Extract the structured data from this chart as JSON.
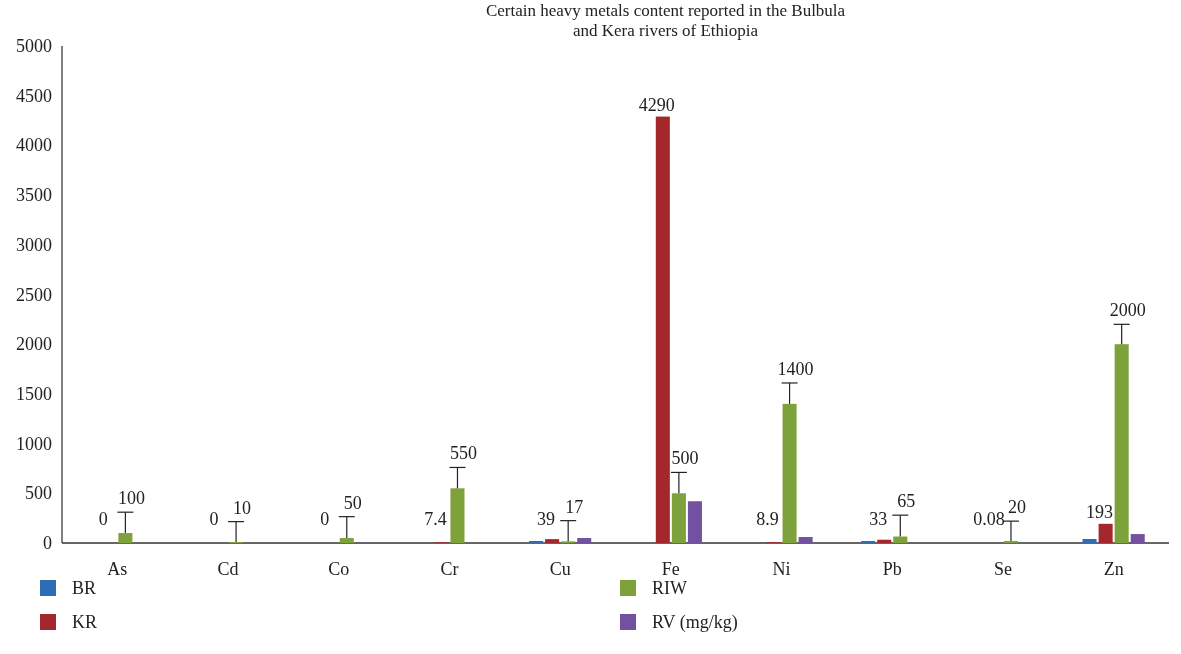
{
  "chart_data": {
    "type": "bar",
    "title": "Certain heavy metals content reported in the Bulbula\nand Kera rivers of Ethiopia",
    "categories": [
      "As",
      "Cd",
      "Co",
      "Cr",
      "Cu",
      "Fe",
      "Ni",
      "Pb",
      "Se",
      "Zn"
    ],
    "ylim": [
      0,
      5000
    ],
    "yticks": [
      0,
      500,
      1000,
      1500,
      2000,
      2500,
      3000,
      3500,
      4000,
      4500,
      5000
    ],
    "grid": false,
    "legend": "bottom",
    "series": [
      {
        "name": "BR",
        "color": "#2e6db4",
        "values": [
          0,
          0,
          0,
          0,
          20,
          0,
          0,
          20,
          0,
          40
        ]
      },
      {
        "name": "KR",
        "color": "#a4282b",
        "values": [
          0,
          0,
          0,
          7.4,
          39,
          4290,
          8.9,
          33,
          0.08,
          193
        ],
        "value_labels": [
          "0",
          "0",
          "0",
          "7.4",
          "39",
          "4290",
          "8.9",
          "33",
          "0.08",
          "193"
        ]
      },
      {
        "name": "RIW",
        "color": "#7ea23b",
        "values": [
          100,
          10,
          50,
          550,
          17,
          500,
          1400,
          65,
          20,
          2000
        ],
        "value_labels": [
          "100",
          "10",
          "50",
          "550",
          "17",
          "500",
          "1400",
          "65",
          "20",
          "2000"
        ],
        "errors": [
          [
            100,
            310
          ],
          [
            10,
            215
          ],
          [
            50,
            265
          ],
          [
            550,
            760
          ],
          [
            17,
            225
          ],
          [
            500,
            710
          ],
          [
            1400,
            1610
          ],
          [
            65,
            280
          ],
          [
            20,
            220
          ],
          [
            2000,
            2200
          ]
        ]
      },
      {
        "name": "RV (mg/kg)",
        "color": "#7451a0",
        "values": [
          0,
          0,
          0,
          0,
          50,
          420,
          60,
          0,
          0,
          90
        ]
      }
    ]
  }
}
